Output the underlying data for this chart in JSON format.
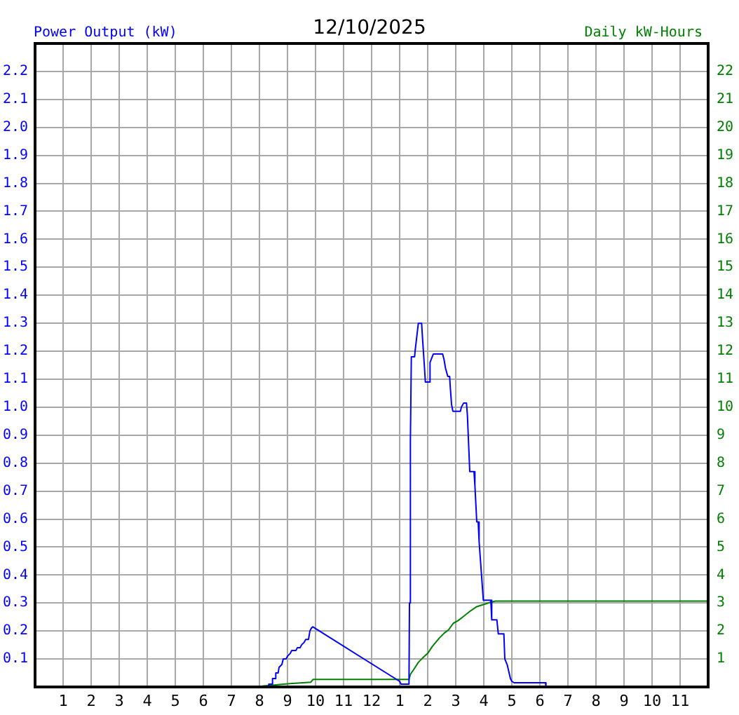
{
  "chart_data": {
    "type": "line",
    "title": "12/10/2025",
    "ylabel": "Power Output (kW)",
    "y2label": "Daily kW-Hours",
    "xlim": [
      "2025-12-10T00:00",
      "2025-12-11T00:00"
    ],
    "xticks": [
      {
        "value": "2025-12-10T01:00",
        "label": "1"
      },
      {
        "value": "2025-12-10T02:00",
        "label": "2"
      },
      {
        "value": "2025-12-10T03:00",
        "label": "3"
      },
      {
        "value": "2025-12-10T04:00",
        "label": "4"
      },
      {
        "value": "2025-12-10T05:00",
        "label": "5"
      },
      {
        "value": "2025-12-10T06:00",
        "label": "6"
      },
      {
        "value": "2025-12-10T07:00",
        "label": "7"
      },
      {
        "value": "2025-12-10T08:00",
        "label": "8"
      },
      {
        "value": "2025-12-10T09:00",
        "label": "9"
      },
      {
        "value": "2025-12-10T10:00",
        "label": "10"
      },
      {
        "value": "2025-12-10T11:00",
        "label": "11"
      },
      {
        "value": "2025-12-10T12:00",
        "label": "12"
      },
      {
        "value": "2025-12-10T13:00",
        "label": "1"
      },
      {
        "value": "2025-12-10T14:00",
        "label": "2"
      },
      {
        "value": "2025-12-10T15:00",
        "label": "3"
      },
      {
        "value": "2025-12-10T16:00",
        "label": "4"
      },
      {
        "value": "2025-12-10T17:00",
        "label": "5"
      },
      {
        "value": "2025-12-10T18:00",
        "label": "6"
      },
      {
        "value": "2025-12-10T19:00",
        "label": "7"
      },
      {
        "value": "2025-12-10T20:00",
        "label": "8"
      },
      {
        "value": "2025-12-10T21:00",
        "label": "9"
      },
      {
        "value": "2025-12-10T22:00",
        "label": "10"
      },
      {
        "value": "2025-12-10T23:00",
        "label": "11"
      }
    ],
    "ylim": [
      0,
      2.3
    ],
    "yticks": [
      0.1,
      0.2,
      0.3,
      0.4,
      0.5,
      0.6,
      0.7,
      0.8,
      0.9,
      {
        "value": 1,
        "label": "1.0"
      },
      1.1,
      1.2,
      1.3,
      1.4,
      1.5,
      1.6,
      1.7,
      1.8,
      1.9,
      {
        "value": 2,
        "label": "2.0"
      },
      2.1,
      2.2
    ],
    "y2lim": [
      0,
      23
    ],
    "y2ticks": [
      1,
      2,
      3,
      4,
      5,
      6,
      7,
      8,
      9,
      10,
      11,
      12,
      13,
      14,
      15,
      16,
      17,
      18,
      19,
      20,
      21,
      22
    ],
    "grid": true,
    "series": [
      {
        "color": "#0000ff",
        "axis": "y",
        "x": [
          "2025-12-10T08:06",
          "2025-12-10T08:18",
          "2025-12-10T08:20",
          "2025-12-10T08:27",
          "2025-12-10T08:28",
          "2025-12-10T08:33",
          "2025-12-10T08:35",
          "2025-12-10T08:40",
          "2025-12-10T08:42",
          "2025-12-10T08:48",
          "2025-12-10T08:51",
          "2025-12-10T08:57",
          "2025-12-10T09:00",
          "2025-12-10T09:06",
          "2025-12-10T09:09",
          "2025-12-10T09:18",
          "2025-12-10T09:21",
          "2025-12-10T09:27",
          "2025-12-10T09:30",
          "2025-12-10T09:36",
          "2025-12-10T09:39",
          "2025-12-10T09:45",
          "2025-12-10T09:48",
          "2025-12-10T09:51",
          "2025-12-10T09:54",
          "2025-12-10T13:00",
          "2025-12-10T13:03",
          "2025-12-10T13:20",
          "2025-12-10T13:21",
          "2025-12-10T13:23",
          "2025-12-10T13:25",
          "2025-12-10T13:32",
          "2025-12-10T13:33",
          "2025-12-10T13:40",
          "2025-12-10T13:47",
          "2025-12-10T13:49",
          "2025-12-10T13:53",
          "2025-12-10T13:55",
          "2025-12-10T14:03",
          "2025-12-10T14:05",
          "2025-12-10T14:12",
          "2025-12-10T14:32",
          "2025-12-10T14:35",
          "2025-12-10T14:38",
          "2025-12-10T14:43",
          "2025-12-10T14:47",
          "2025-12-10T14:48",
          "2025-12-10T14:51",
          "2025-12-10T14:54",
          "2025-12-10T15:10",
          "2025-12-10T15:12",
          "2025-12-10T15:17",
          "2025-12-10T15:23",
          "2025-12-10T15:25",
          "2025-12-10T15:30",
          "2025-12-10T15:39",
          "2025-12-10T15:41",
          "2025-12-10T15:45",
          "2025-12-10T15:48",
          "2025-12-10T15:50",
          "2025-12-10T15:59",
          "2025-12-10T16:15",
          "2025-12-10T16:17",
          "2025-12-10T16:28",
          "2025-12-10T16:31",
          "2025-12-10T16:43",
          "2025-12-10T16:45",
          "2025-12-10T16:50",
          "2025-12-10T16:57",
          "2025-12-10T17:00",
          "2025-12-10T17:05",
          "2025-12-10T18:12",
          "2025-12-10T18:13"
        ],
        "values": [
          0,
          0,
          0.01,
          0.01,
          0.03,
          0.03,
          0.05,
          0.05,
          0.07,
          0.08,
          0.1,
          0.1,
          0.11,
          0.12,
          0.13,
          0.13,
          0.14,
          0.14,
          0.15,
          0.16,
          0.17,
          0.17,
          0.2,
          0.21,
          0.215,
          0.02,
          0.01,
          0.01,
          0.3,
          0.88,
          1.18,
          1.18,
          1.2,
          1.3,
          1.3,
          1.245,
          1.145,
          1.09,
          1.09,
          1.16,
          1.19,
          1.19,
          1.17,
          1.14,
          1.11,
          1.11,
          1.08,
          1.01,
          0.985,
          0.985,
          1.0,
          1.015,
          1.015,
          0.97,
          0.77,
          0.77,
          0.72,
          0.59,
          0.59,
          0.52,
          0.31,
          0.31,
          0.24,
          0.24,
          0.19,
          0.19,
          0.1,
          0.08,
          0.03,
          0.02,
          0.015,
          0.015,
          0
        ]
      },
      {
        "color": "#008000",
        "axis": "y2",
        "x": [
          "2025-12-10T08:06",
          "2025-12-10T09:05",
          "2025-12-10T09:50",
          "2025-12-10T09:55",
          "2025-12-10T13:20",
          "2025-12-10T13:23",
          "2025-12-10T13:30",
          "2025-12-10T13:40",
          "2025-12-10T13:50",
          "2025-12-10T14:00",
          "2025-12-10T14:10",
          "2025-12-10T14:25",
          "2025-12-10T14:35",
          "2025-12-10T14:45",
          "2025-12-10T14:55",
          "2025-12-10T15:05",
          "2025-12-10T15:15",
          "2025-12-10T15:30",
          "2025-12-10T15:45",
          "2025-12-10T16:00",
          "2025-12-10T16:15",
          "2025-12-10T16:25",
          "2025-12-11T00:00"
        ],
        "values": [
          0.03,
          0.12,
          0.17,
          0.27,
          0.27,
          0.45,
          0.62,
          0.88,
          1.05,
          1.2,
          1.45,
          1.75,
          1.92,
          2.05,
          2.28,
          2.37,
          2.5,
          2.7,
          2.87,
          2.95,
          3.03,
          3.07,
          3.07
        ]
      }
    ]
  }
}
